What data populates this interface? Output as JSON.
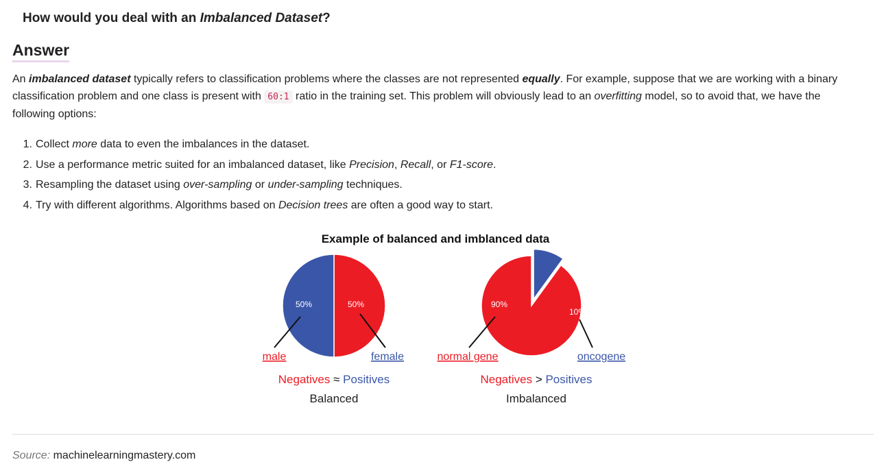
{
  "question": {
    "before": "How would you deal with an ",
    "emph": "Imbalanced Dataset",
    "after": "?"
  },
  "answer_heading": "Answer",
  "intro": {
    "p1": "An ",
    "p2": "imbalanced dataset",
    "p3": " typically refers to classification problems where the classes are not represented ",
    "p4": "equally",
    "p5": ". For example, suppose that we are working with a binary classification problem and one class is present with ",
    "code": "60:1",
    "p6": " ratio in the training set. This problem will obviously lead to an ",
    "p7": "overfitting",
    "p8": " model, so to avoid that, we have the following options:"
  },
  "options": [
    {
      "num": "1.",
      "a": "Collect ",
      "b": "more",
      "c": " data to even the imbalances in the dataset.",
      "d": "",
      "e": "",
      "f": "",
      "g": ""
    },
    {
      "num": "2.",
      "a": "Use a performance metric suited for an imbalanced dataset, like ",
      "b": "Precision",
      "c": ", ",
      "d": "Recall",
      "e": ", or ",
      "f": "F1-score",
      "g": "."
    },
    {
      "num": "3.",
      "a": "Resampling the dataset using ",
      "b": "over-sampling",
      "c": " or ",
      "d": "under-sampling",
      "e": " techniques.",
      "f": "",
      "g": ""
    },
    {
      "num": "4.",
      "a": "Try with different algorithms. Algorithms based on ",
      "b": "Decision trees",
      "c": " are often a good way to start.",
      "d": "",
      "e": "",
      "f": "",
      "g": ""
    }
  ],
  "chart_data": [
    {
      "type": "pie",
      "title": "Example of balanced and imblanced data",
      "caption": "Balanced",
      "relation": {
        "left": "Negatives",
        "op": "≈",
        "right": "Positives"
      },
      "slices": [
        {
          "label": "male",
          "value": 50,
          "value_label": "50%",
          "color": "#ec1c24"
        },
        {
          "label": "female",
          "value": 50,
          "value_label": "50%",
          "color": "#3a56a8"
        }
      ]
    },
    {
      "type": "pie",
      "caption": "Imbalanced",
      "relation": {
        "left": "Negatives",
        "op": ">",
        "right": "Positives"
      },
      "slices": [
        {
          "label": "normal gene",
          "value": 90,
          "value_label": "90%",
          "color": "#ec1c24"
        },
        {
          "label": "oncogene",
          "value": 10,
          "value_label": "10%",
          "color": "#3a56a8"
        }
      ]
    }
  ],
  "source": {
    "label": "Source:",
    "site": "machinelearningmastery.com"
  }
}
